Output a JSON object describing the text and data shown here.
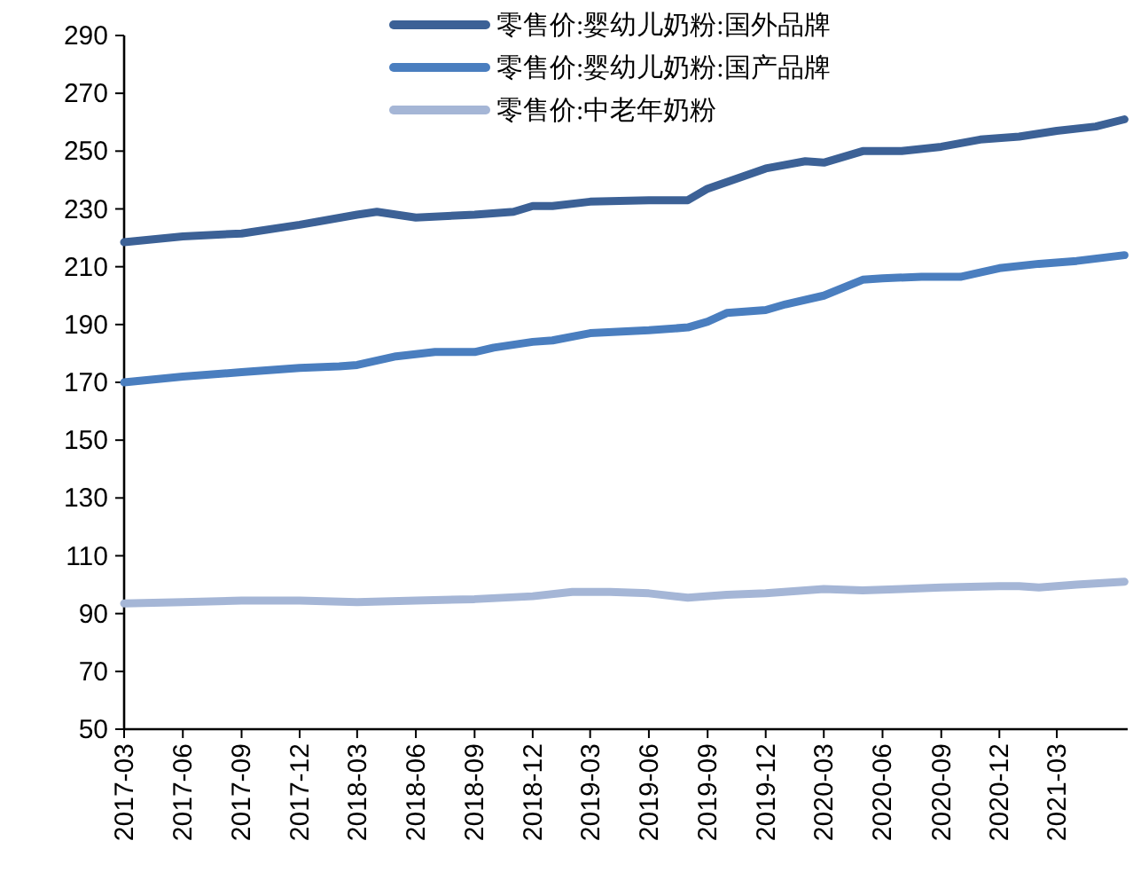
{
  "chart_data": {
    "type": "line",
    "legend": "top",
    "grid": false,
    "marker": "none",
    "line_style": "solid",
    "xlim": [
      "2017-03-01",
      "2021-06-20"
    ],
    "ylim": [
      50,
      290
    ],
    "yticks": [
      50,
      70,
      90,
      110,
      130,
      150,
      170,
      190,
      210,
      230,
      250,
      270,
      290
    ],
    "xticks": [
      "2017-03",
      "2017-06",
      "2017-09",
      "2017-12",
      "2018-03",
      "2018-06",
      "2018-09",
      "2018-12",
      "2019-03",
      "2019-06",
      "2019-09",
      "2019-12",
      "2020-03",
      "2020-06",
      "2020-09",
      "2020-12",
      "2021-03"
    ],
    "series": [
      {
        "name": "零售价:婴幼儿奶粉:国外品牌",
        "color": "#3c6196",
        "x": [
          "2017-03",
          "2017-06",
          "2017-09",
          "2017-12",
          "2018-03",
          "2018-04",
          "2018-06",
          "2018-09",
          "2018-11",
          "2018-12",
          "2019-01",
          "2019-03",
          "2019-06",
          "2019-08",
          "2019-09",
          "2019-12",
          "2020-02",
          "2020-03",
          "2020-05",
          "2020-07",
          "2020-09",
          "2020-11",
          "2021-01",
          "2021-03",
          "2021-05",
          "2021-06-15"
        ],
        "values": [
          218.5,
          220.5,
          221.5,
          224.5,
          228,
          229,
          227,
          228,
          229,
          231,
          231,
          232.5,
          233,
          233,
          237,
          244,
          246.5,
          246,
          250,
          250,
          251.5,
          254,
          255,
          257,
          258.5,
          261
        ]
      },
      {
        "name": "零售价:婴幼儿奶粉:国产品牌",
        "color": "#4a7ebf",
        "x": [
          "2017-03",
          "2017-06",
          "2017-09",
          "2017-12",
          "2018-02",
          "2018-03",
          "2018-05",
          "2018-07",
          "2018-09",
          "2018-10",
          "2018-12",
          "2019-01",
          "2019-03",
          "2019-06",
          "2019-08",
          "2019-09",
          "2019-10",
          "2019-12",
          "2020-01",
          "2020-03",
          "2020-05",
          "2020-06",
          "2020-08",
          "2020-10",
          "2020-11",
          "2020-12",
          "2021-02",
          "2021-04",
          "2021-06-15"
        ],
        "values": [
          170,
          172,
          173.5,
          175,
          175.5,
          176,
          179,
          180.5,
          180.5,
          182,
          184,
          184.5,
          187,
          188,
          189,
          191,
          194,
          195,
          197,
          200,
          205.5,
          206,
          206.5,
          206.5,
          208,
          209.5,
          211,
          212,
          214
        ]
      },
      {
        "name": "零售价:中老年奶粉",
        "color": "#a5b6d6",
        "x": [
          "2017-03",
          "2017-06",
          "2017-09",
          "2017-12",
          "2018-03",
          "2018-06",
          "2018-09",
          "2018-12",
          "2019-02",
          "2019-04",
          "2019-06",
          "2019-08",
          "2019-10",
          "2019-12",
          "2020-03",
          "2020-05",
          "2020-07",
          "2020-09",
          "2020-12",
          "2021-01",
          "2021-02",
          "2021-04",
          "2021-06-15"
        ],
        "values": [
          93.5,
          94,
          94.5,
          94.5,
          94,
          94.5,
          95,
          96,
          97.5,
          97.5,
          97,
          95.5,
          96.5,
          97,
          98.5,
          98,
          98.5,
          99,
          99.5,
          99.5,
          99,
          100,
          101
        ]
      }
    ]
  }
}
